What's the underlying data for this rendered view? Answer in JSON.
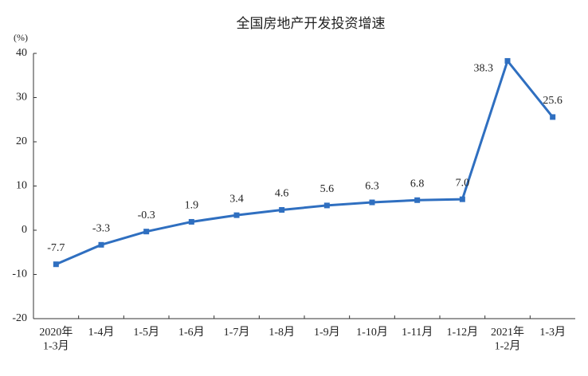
{
  "chart_data": {
    "type": "line",
    "title": "全国房地产开发投资增速",
    "y_label": "(%)",
    "categories": [
      "2020年\n1-3月",
      "1-4月",
      "1-5月",
      "1-6月",
      "1-7月",
      "1-8月",
      "1-9月",
      "1-10月",
      "1-11月",
      "1-12月",
      "2021年\n1-2月",
      "1-3月"
    ],
    "series": [
      {
        "name": "全国房地产开发投资增速",
        "color": "#2f6fc0",
        "values": [
          -7.7,
          -3.3,
          -0.3,
          1.9,
          3.4,
          4.6,
          5.6,
          6.3,
          6.8,
          7.0,
          38.3,
          25.6
        ],
        "value_labels": [
          "-7.7",
          "-3.3",
          "-0.3",
          "1.9",
          "3.4",
          "4.6",
          "5.6",
          "6.3",
          "6.8",
          "7.0",
          "38.3",
          "25.6"
        ]
      }
    ],
    "ylim": [
      -20,
      40
    ],
    "yticks": [
      -20,
      -10,
      0,
      10,
      20,
      30,
      40
    ],
    "grid": false
  }
}
